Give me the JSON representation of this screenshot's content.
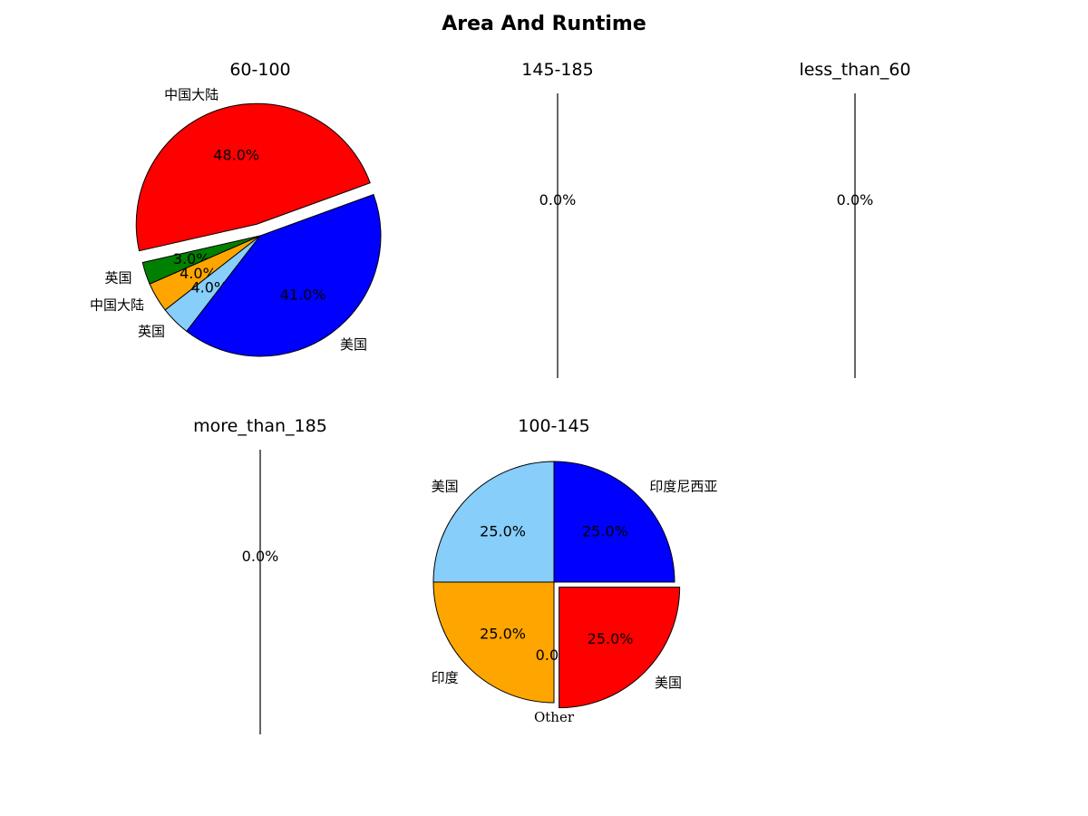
{
  "title": "Area And Runtime",
  "chart_data": [
    {
      "type": "pie",
      "title": "60-100",
      "slices": [
        {
          "label": "中国大陆",
          "value": 48.0,
          "pct_label": "48.0%",
          "color": "#ff0000",
          "explode": true
        },
        {
          "label": "英国",
          "value": 3.0,
          "pct_label": "3.0%",
          "color": "#008000",
          "explode": false
        },
        {
          "label": "中国大陆",
          "value": 4.0,
          "pct_label": "4.0%",
          "color": "#ffa500",
          "explode": false
        },
        {
          "label": "英国",
          "value": 4.0,
          "pct_label": "4.0%",
          "color": "#87cefa",
          "explode": false
        },
        {
          "label": "美国",
          "value": 41.0,
          "pct_label": "41.0%",
          "color": "#0000ff",
          "explode": false
        }
      ]
    },
    {
      "type": "pie",
      "title": "145-185",
      "slices": [
        {
          "label": "",
          "value": 0,
          "pct_label": "0.0%",
          "color": "#000000",
          "explode": false
        }
      ]
    },
    {
      "type": "pie",
      "title": "less_than_60",
      "slices": [
        {
          "label": "",
          "value": 0,
          "pct_label": "0.0%",
          "color": "#000000",
          "explode": false
        }
      ]
    },
    {
      "type": "pie",
      "title": "more_than_185",
      "slices": [
        {
          "label": "",
          "value": 0,
          "pct_label": "0.0%",
          "color": "#000000",
          "explode": false
        }
      ]
    },
    {
      "type": "pie",
      "title": "100-145",
      "slices": [
        {
          "label": "印度尼西亚",
          "value": 25.0,
          "pct_label": "25.0%",
          "color": "#0000ff",
          "explode": false
        },
        {
          "label": "美国",
          "value": 25.0,
          "pct_label": "25.0%",
          "color": "#87cefa",
          "explode": false
        },
        {
          "label": "印度",
          "value": 25.0,
          "pct_label": "25.0%",
          "color": "#ffa500",
          "explode": false
        },
        {
          "label": "Other",
          "value": 0.0,
          "pct_label": "0.0%",
          "color": "#ffffff",
          "explode": false
        },
        {
          "label": "美国",
          "value": 25.0,
          "pct_label": "25.0%",
          "color": "#ff0000",
          "explode": true
        }
      ]
    }
  ]
}
